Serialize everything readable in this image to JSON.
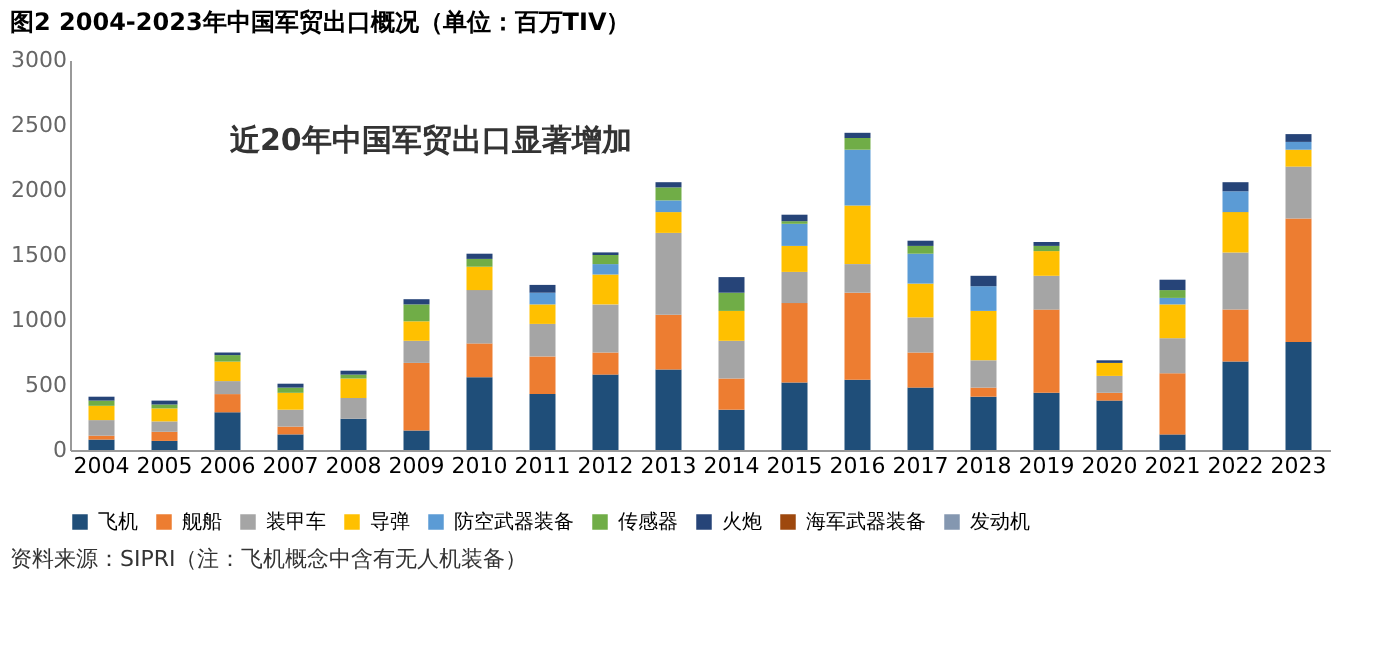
{
  "chart_data": {
    "type": "bar",
    "stacked": true,
    "title": "图2 2004-2023年中国军贸出口概况（单位：百万TIV）",
    "annotations": [
      "近20年中国军贸出口显著增加",
      "资料来源：SIPRI（注：飞机概念中含有无人机装备）"
    ],
    "categories": [
      "2004",
      "2005",
      "2006",
      "2007",
      "2008",
      "2009",
      "2010",
      "2011",
      "2012",
      "2013",
      "2014",
      "2015",
      "2016",
      "2017",
      "2018",
      "2019",
      "2020",
      "2021",
      "2022",
      "2023"
    ],
    "series": [
      {
        "name": "飞机",
        "color": "#1f4e79",
        "values": [
          80,
          70,
          290,
          120,
          240,
          150,
          560,
          430,
          580,
          620,
          310,
          520,
          540,
          480,
          410,
          440,
          380,
          120,
          680,
          830
        ]
      },
      {
        "name": "舰船",
        "color": "#ed7d31",
        "values": [
          30,
          70,
          140,
          60,
          0,
          520,
          260,
          290,
          170,
          420,
          240,
          610,
          670,
          270,
          70,
          640,
          60,
          470,
          400,
          950
        ]
      },
      {
        "name": "装甲车",
        "color": "#a5a5a5",
        "values": [
          120,
          80,
          100,
          130,
          160,
          170,
          410,
          250,
          370,
          630,
          290,
          240,
          220,
          270,
          210,
          260,
          130,
          270,
          440,
          400
        ]
      },
      {
        "name": "导弹",
        "color": "#ffc000",
        "values": [
          110,
          100,
          150,
          130,
          150,
          150,
          180,
          150,
          230,
          160,
          230,
          200,
          450,
          260,
          380,
          190,
          100,
          260,
          310,
          130
        ]
      },
      {
        "name": "防空武器装备",
        "color": "#5b9bd5",
        "values": [
          0,
          0,
          0,
          0,
          0,
          0,
          0,
          90,
          80,
          90,
          0,
          170,
          430,
          230,
          190,
          0,
          0,
          50,
          160,
          60
        ]
      },
      {
        "name": "传感器",
        "color": "#70ad47",
        "values": [
          40,
          30,
          50,
          40,
          30,
          130,
          60,
          0,
          70,
          100,
          140,
          20,
          90,
          60,
          0,
          40,
          0,
          60,
          0,
          0
        ]
      },
      {
        "name": "火炮",
        "color": "#264478",
        "values": [
          30,
          30,
          20,
          30,
          30,
          40,
          40,
          60,
          20,
          40,
          120,
          50,
          40,
          40,
          80,
          30,
          20,
          80,
          70,
          60
        ]
      },
      {
        "name": "海军武器装备",
        "color": "#9e480e",
        "values": [
          null,
          null,
          null,
          null,
          null,
          null,
          null,
          null,
          null,
          null,
          null,
          null,
          null,
          null,
          null,
          null,
          null,
          null,
          null,
          null
        ]
      },
      {
        "name": "发动机",
        "color": "#8497b0",
        "values": [
          null,
          null,
          null,
          null,
          null,
          null,
          null,
          null,
          null,
          null,
          null,
          null,
          null,
          null,
          null,
          null,
          null,
          null,
          null,
          null
        ]
      }
    ],
    "ylim": [
      0,
      3000
    ],
    "yticks": [
      0,
      500,
      1000,
      1500,
      2000,
      2500,
      3000
    ],
    "grid": false,
    "legend": "bottom"
  }
}
